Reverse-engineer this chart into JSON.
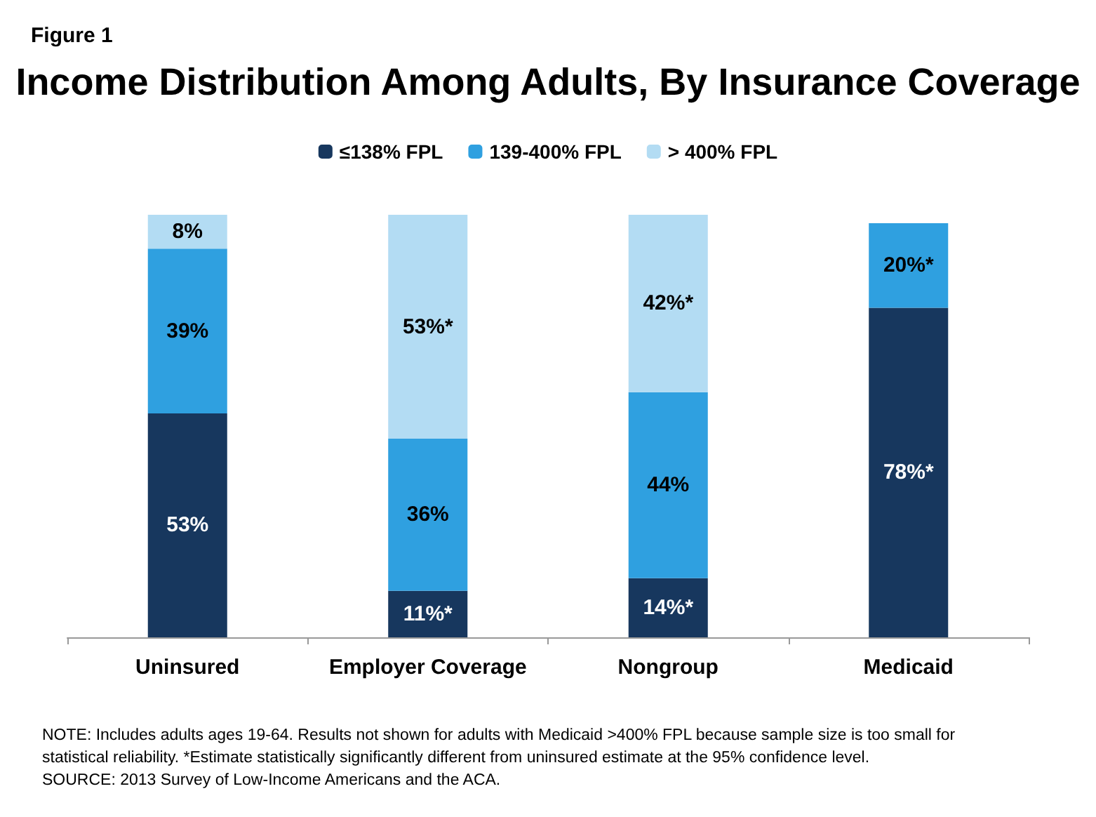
{
  "chart_data": {
    "type": "bar",
    "stacked": true,
    "subtitle": "Figure 1",
    "title": "Income Distribution Among Adults, By Insurance Coverage",
    "categories": [
      "Uninsured",
      "Employer Coverage",
      "Nongroup",
      "Medicaid"
    ],
    "series": [
      {
        "name": "≤138% FPL",
        "color": "#17375e",
        "values": [
          53,
          11,
          14,
          78
        ],
        "value_labels": [
          "53%",
          "11%*",
          "14%*",
          "78%*"
        ]
      },
      {
        "name": "139-400% FPL",
        "color": "#2fa0e0",
        "values": [
          39,
          36,
          44,
          20
        ],
        "value_labels": [
          "39%",
          "36%",
          "44%",
          "20%*"
        ]
      },
      {
        "name": "> 400% FPL",
        "color": "#b3dcf3",
        "values": [
          8,
          53,
          42,
          null
        ],
        "value_labels": [
          "8%",
          "53%*",
          "42%*",
          null
        ]
      }
    ],
    "legend": "top",
    "tick_labels": "x",
    "annotations": [
      "NOTE: Includes adults ages 19-64. Results not shown for adults with Medicaid >400% FPL because sample size is too small for",
      "statistical reliability. *Estimate statistically significantly different from uninsured estimate at the 95% confidence level.",
      "SOURCE: 2013 Survey of Low-Income Americans and the ACA."
    ]
  }
}
